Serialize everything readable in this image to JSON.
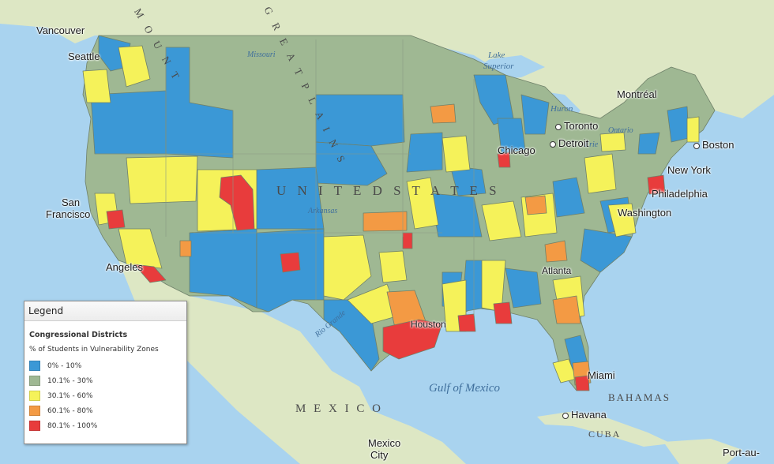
{
  "map": {
    "geo_labels": {
      "mountain": "M O U N T",
      "great_plains": "G R E A T   P L A I N S",
      "united_states": "U N I T E D   S T A T E S",
      "mexico": "M E X I C O",
      "bahamas": "BAHAMAS",
      "cuba": "CUBA"
    },
    "water_labels": {
      "gulf": "Gulf of Mexico",
      "lake_superior_1": "Lake",
      "lake_superior_2": "Superior",
      "lake_huron": "Huron",
      "lake_erie": "Erie",
      "lake_ontario": "Ontario",
      "missouri": "Missouri",
      "arkansas": "Arkansas",
      "rio_grande": "Rio Grande"
    },
    "cities": {
      "vancouver": "Vancouver",
      "seattle": "Seattle",
      "san_francisco_1": "San",
      "san_francisco_2": "Francisco",
      "los_angeles": "Angeles",
      "chicago": "Chicago",
      "toronto": "Toronto",
      "detroit": "Detroit",
      "montreal": "Montréal",
      "boston": "Boston",
      "new_york": "New York",
      "philadelphia": "Philadelphia",
      "washington": "Washington",
      "atlanta": "Atlanta",
      "houston": "Houston",
      "miami": "Miami",
      "havana": "Havana",
      "mexico_city_1": "Mexico",
      "mexico_city_2": "City",
      "port_au": "Port-au-"
    },
    "colors": {
      "water": "#a9d3ef",
      "land": "#dfe8c9",
      "low": "#3b98d6",
      "mid_low": "#9fb893",
      "mid": "#f5f25a",
      "mid_high": "#f39a44",
      "high": "#e83c3c"
    }
  },
  "legend": {
    "title": "Legend",
    "layer": "Congressional Districts",
    "field": "% of Students in Vulnerability Zones",
    "classes": [
      {
        "label": "0% - 10%",
        "color": "#3b98d6"
      },
      {
        "label": "10.1% - 30%",
        "color": "#9fb893"
      },
      {
        "label": "30.1% - 60%",
        "color": "#f5f25a"
      },
      {
        "label": "60.1% - 80%",
        "color": "#f39a44"
      },
      {
        "label": "80.1% - 100%",
        "color": "#e83c3c"
      }
    ]
  }
}
